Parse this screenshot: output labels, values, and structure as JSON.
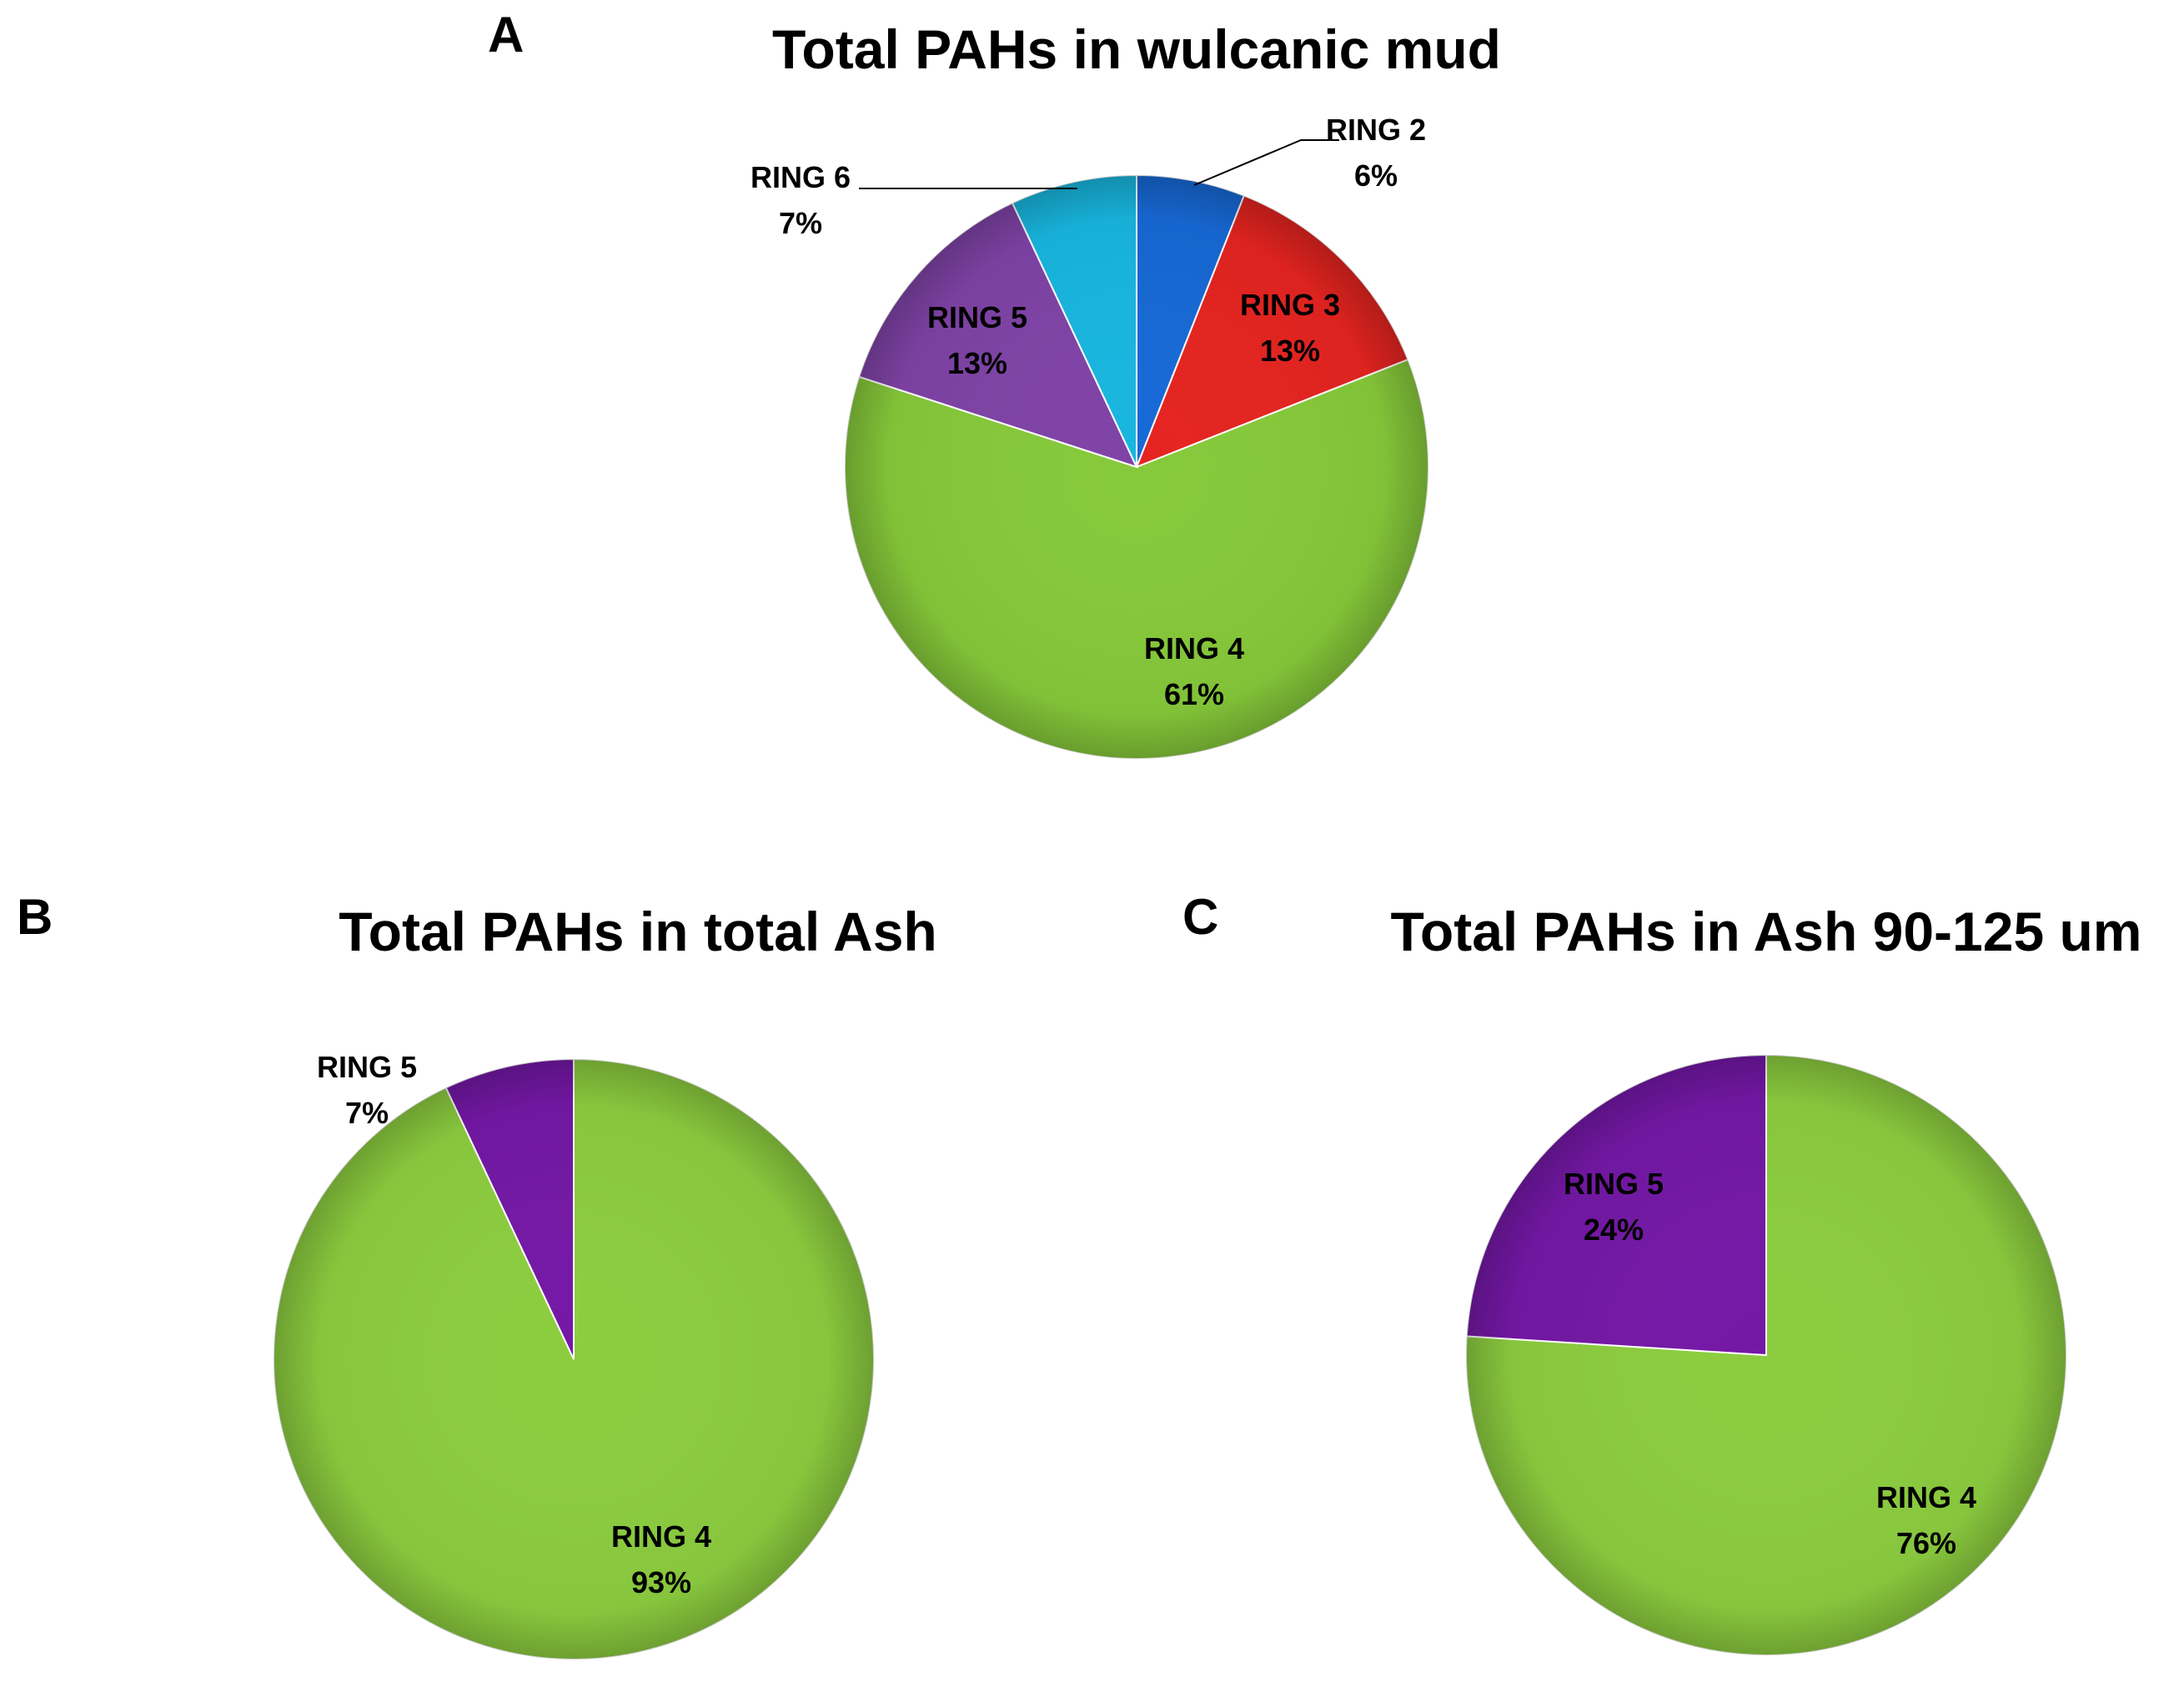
{
  "chart_data": [
    {
      "type": "pie",
      "panel": "A",
      "title": "Total PAHs in wulcanic mud",
      "slices": [
        {
          "label": "RING 2",
          "value": 6,
          "value_label": "6%",
          "color": "#1769d6"
        },
        {
          "label": "RING 3",
          "value": 13,
          "value_label": "13%",
          "color": "#e52420"
        },
        {
          "label": "RING 4",
          "value": 61,
          "value_label": "61%",
          "color": "#86c93a"
        },
        {
          "label": "RING 5",
          "value": 13,
          "value_label": "13%",
          "color": "#7f43a6"
        },
        {
          "label": "RING 6",
          "value": 7,
          "value_label": "7%",
          "color": "#18b6df"
        }
      ]
    },
    {
      "type": "pie",
      "panel": "B",
      "title": "Total PAHs in total Ash",
      "slices": [
        {
          "label": "RING 4",
          "value": 93,
          "value_label": "93%",
          "color": "#8ccd3f"
        },
        {
          "label": "RING 5",
          "value": 7,
          "value_label": "7%",
          "color": "#7418a6"
        }
      ]
    },
    {
      "type": "pie",
      "panel": "C",
      "title": "Total PAHs in Ash 90-125 um",
      "slices": [
        {
          "label": "RING 4",
          "value": 76,
          "value_label": "76%",
          "color": "#8ccd3f"
        },
        {
          "label": "RING 5",
          "value": 24,
          "value_label": "24%",
          "color": "#7418a6"
        }
      ]
    }
  ]
}
